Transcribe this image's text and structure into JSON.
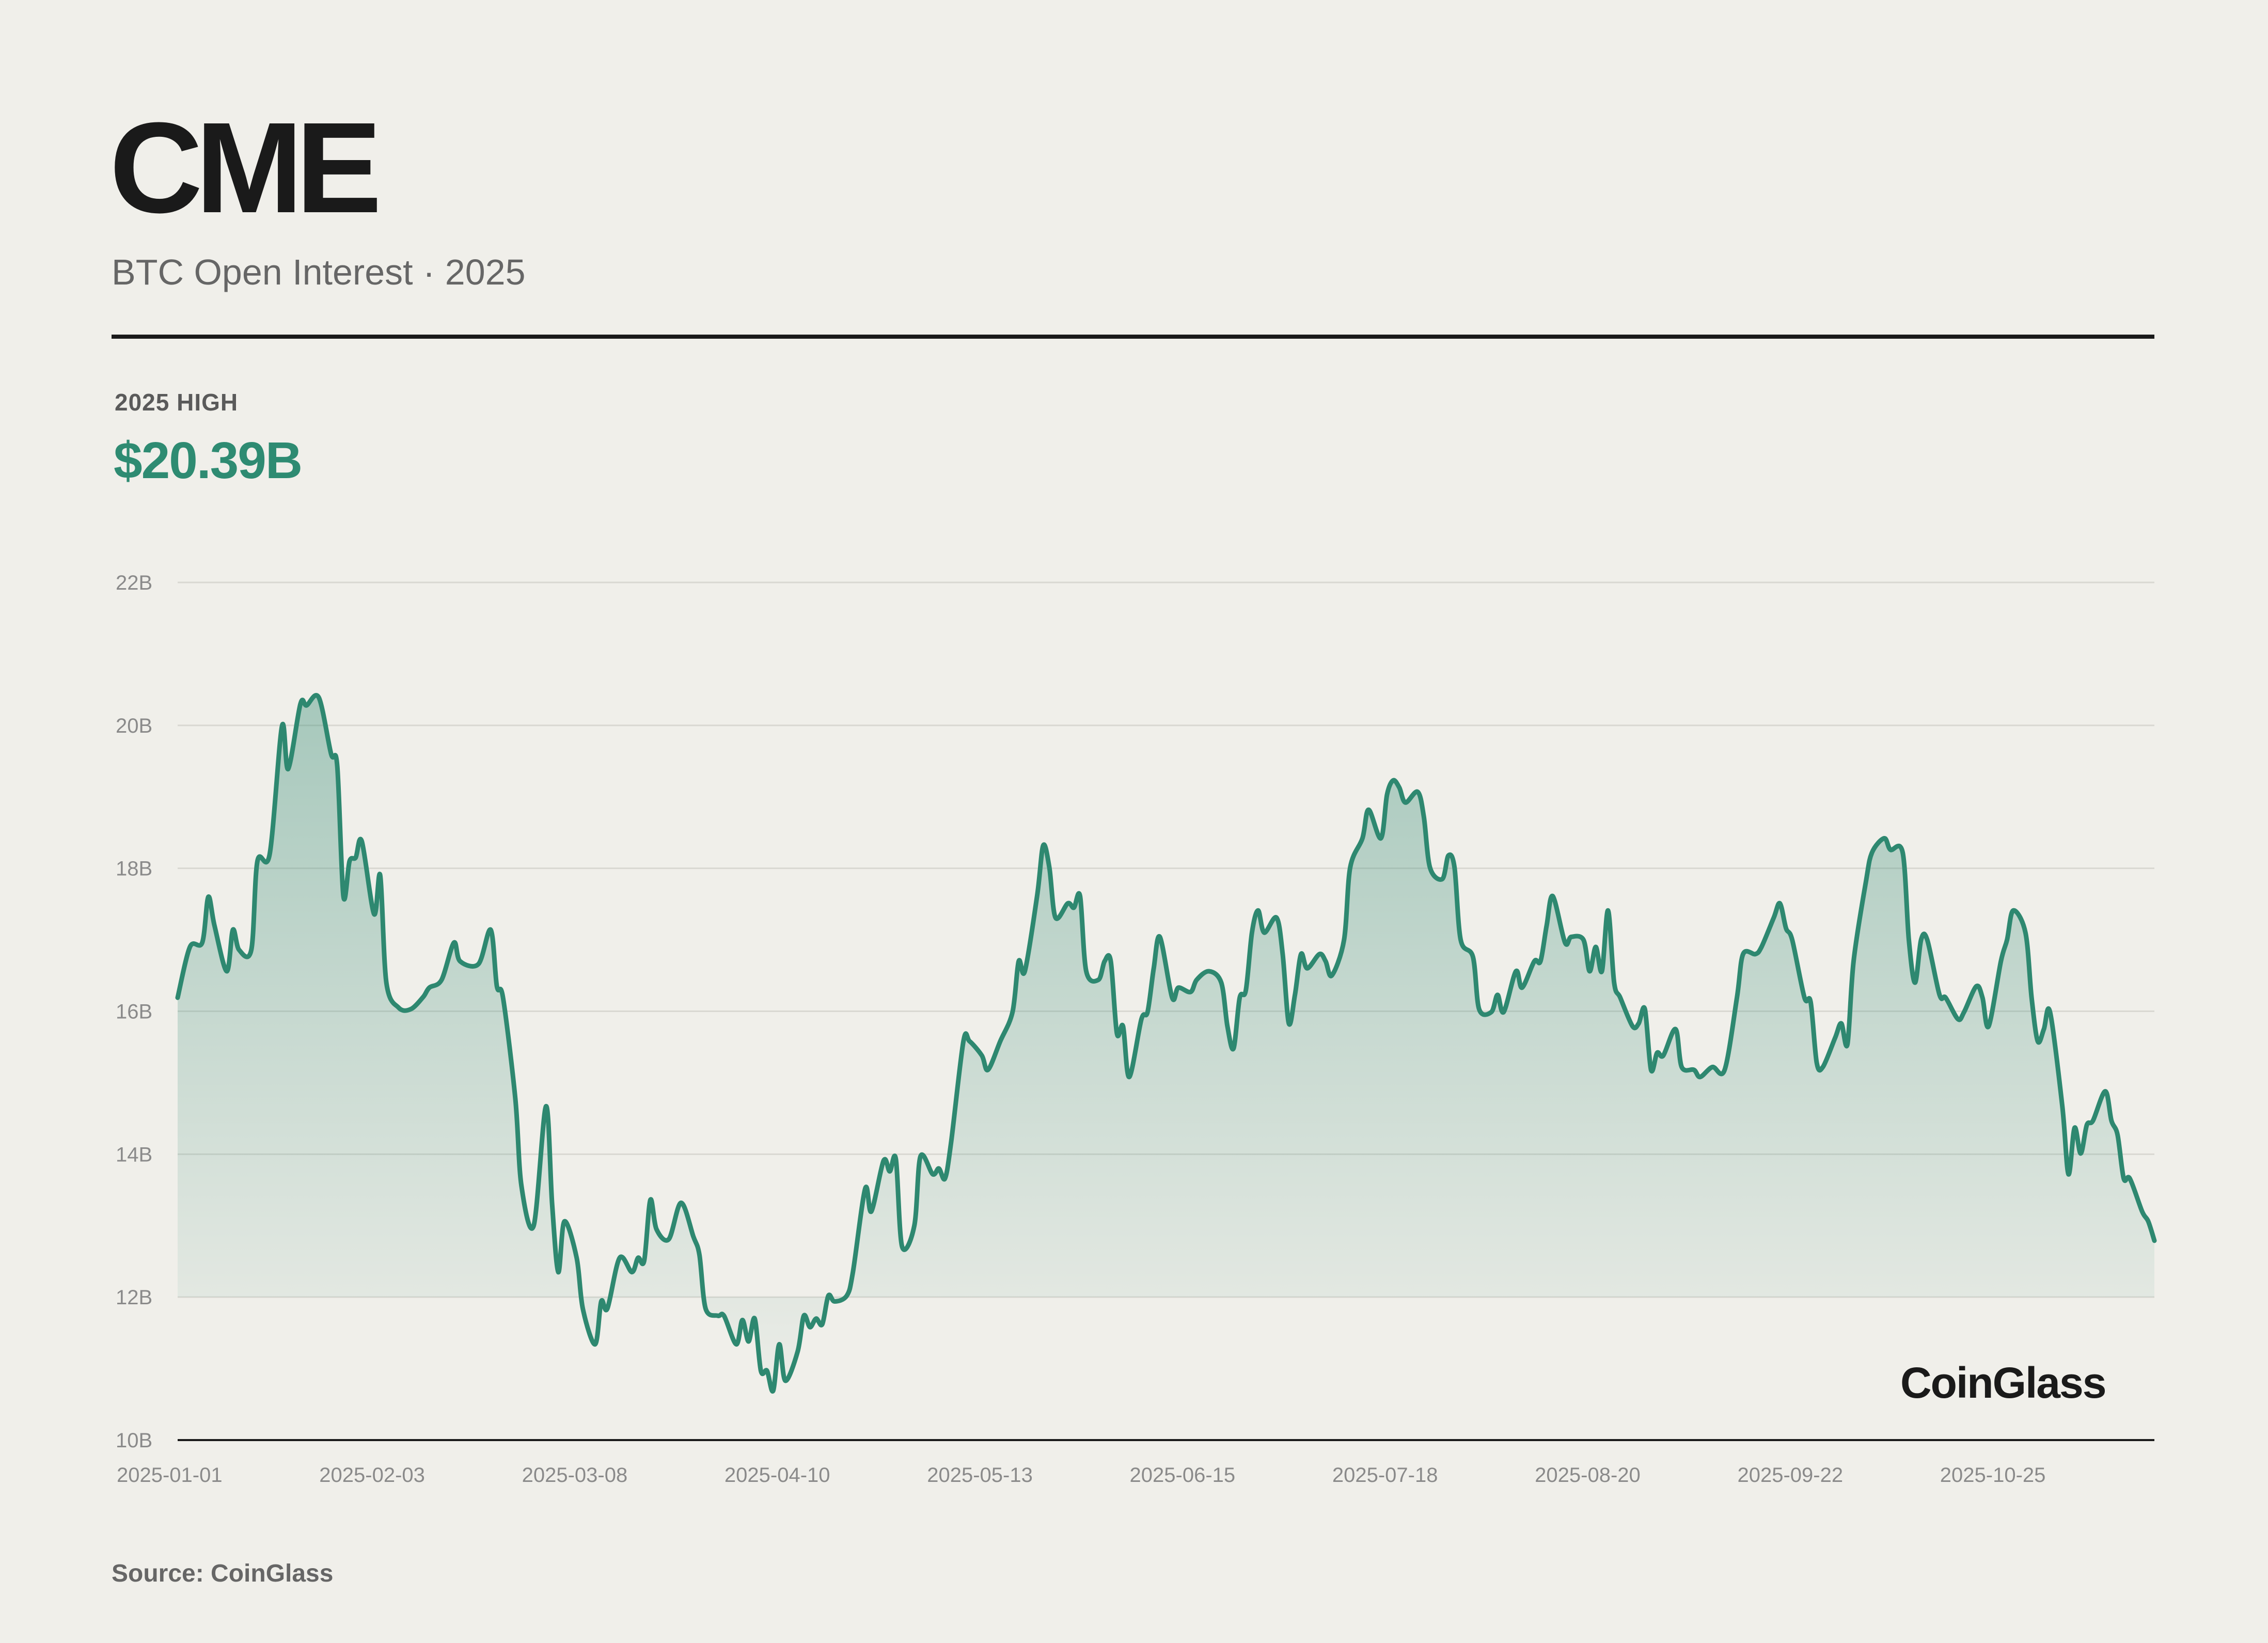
{
  "header": {
    "title": "CME",
    "subtitle": "BTC Open Interest · 2025"
  },
  "highlight": {
    "label": "2025 HIGH",
    "value": "$20.39B"
  },
  "footer": {
    "source": "Source: CoinGlass",
    "logo": "CoinGlass"
  },
  "colors": {
    "line": "#2e8870",
    "background": "#f0efea",
    "highlight": "#2e8b72"
  },
  "chart_data": {
    "type": "area",
    "ylim": [
      10,
      22
    ],
    "grid": true,
    "y_ticks": [
      "10B",
      "12B",
      "14B",
      "16B",
      "18B",
      "20B",
      "22B"
    ],
    "y_tick_values": [
      10,
      12,
      14,
      16,
      18,
      20,
      22
    ],
    "x_ticks": [
      "2025-01-01",
      "2025-02-03",
      "2025-03-08",
      "2025-04-10",
      "2025-05-13",
      "2025-06-15",
      "2025-07-18",
      "2025-08-20",
      "2025-09-22",
      "2025-10-25"
    ],
    "xlim": [
      "2025-01-01",
      "2025-11-19"
    ],
    "unit": "B USD",
    "points": [
      [
        "2025-01-01",
        16.19
      ],
      [
        "2025-01-03",
        16.9
      ],
      [
        "2025-01-05",
        16.96
      ],
      [
        "2025-01-06",
        17.6
      ],
      [
        "2025-01-07",
        17.2
      ],
      [
        "2025-01-09",
        16.56
      ],
      [
        "2025-01-10",
        17.14
      ],
      [
        "2025-01-11",
        16.86
      ],
      [
        "2025-01-13",
        16.86
      ],
      [
        "2025-01-14",
        18.1
      ],
      [
        "2025-01-16",
        18.2
      ],
      [
        "2025-01-18",
        19.99
      ],
      [
        "2025-01-19",
        19.39
      ],
      [
        "2025-01-21",
        20.3
      ],
      [
        "2025-01-22",
        20.28
      ],
      [
        "2025-01-24",
        20.39
      ],
      [
        "2025-01-26",
        19.6
      ],
      [
        "2025-01-27",
        19.43
      ],
      [
        "2025-01-28",
        17.61
      ],
      [
        "2025-01-29",
        18.1
      ],
      [
        "2025-01-30",
        18.15
      ],
      [
        "2025-01-31",
        18.38
      ],
      [
        "2025-02-02",
        17.36
      ],
      [
        "2025-02-03",
        17.9
      ],
      [
        "2025-02-04",
        16.4
      ],
      [
        "2025-02-06",
        16.05
      ],
      [
        "2025-02-08",
        16.03
      ],
      [
        "2025-02-10",
        16.2
      ],
      [
        "2025-02-11",
        16.33
      ],
      [
        "2025-02-13",
        16.44
      ],
      [
        "2025-02-15",
        16.96
      ],
      [
        "2025-02-16",
        16.7
      ],
      [
        "2025-02-19",
        16.66
      ],
      [
        "2025-02-21",
        17.14
      ],
      [
        "2025-02-22",
        16.35
      ],
      [
        "2025-02-23",
        16.19
      ],
      [
        "2025-02-25",
        14.78
      ],
      [
        "2025-02-26",
        13.56
      ],
      [
        "2025-02-28",
        13.0
      ],
      [
        "2025-03-02",
        14.67
      ],
      [
        "2025-03-03",
        13.3
      ],
      [
        "2025-03-04",
        12.35
      ],
      [
        "2025-03-05",
        13.06
      ],
      [
        "2025-03-07",
        12.55
      ],
      [
        "2025-03-08",
        11.84
      ],
      [
        "2025-03-10",
        11.34
      ],
      [
        "2025-03-11",
        11.94
      ],
      [
        "2025-03-12",
        11.84
      ],
      [
        "2025-03-14",
        12.55
      ],
      [
        "2025-03-16",
        12.35
      ],
      [
        "2025-03-17",
        12.55
      ],
      [
        "2025-03-18",
        12.51
      ],
      [
        "2025-03-19",
        13.36
      ],
      [
        "2025-03-20",
        12.95
      ],
      [
        "2025-03-22",
        12.81
      ],
      [
        "2025-03-24",
        13.32
      ],
      [
        "2025-03-26",
        12.85
      ],
      [
        "2025-03-27",
        12.59
      ],
      [
        "2025-03-28",
        11.84
      ],
      [
        "2025-03-30",
        11.74
      ],
      [
        "2025-03-31",
        11.74
      ],
      [
        "2025-04-02",
        11.34
      ],
      [
        "2025-04-03",
        11.68
      ],
      [
        "2025-04-04",
        11.38
      ],
      [
        "2025-04-05",
        11.7
      ],
      [
        "2025-04-06",
        10.97
      ],
      [
        "2025-04-07",
        10.97
      ],
      [
        "2025-04-08",
        10.69
      ],
      [
        "2025-04-09",
        11.34
      ],
      [
        "2025-04-10",
        10.83
      ],
      [
        "2025-04-12",
        11.24
      ],
      [
        "2025-04-13",
        11.74
      ],
      [
        "2025-04-14",
        11.58
      ],
      [
        "2025-04-15",
        11.7
      ],
      [
        "2025-04-16",
        11.62
      ],
      [
        "2025-04-17",
        12.02
      ],
      [
        "2025-04-18",
        11.94
      ],
      [
        "2025-04-20",
        12.02
      ],
      [
        "2025-04-21",
        12.35
      ],
      [
        "2025-04-23",
        13.52
      ],
      [
        "2025-04-24",
        13.2
      ],
      [
        "2025-04-26",
        13.91
      ],
      [
        "2025-04-27",
        13.76
      ],
      [
        "2025-04-28",
        13.93
      ],
      [
        "2025-04-29",
        12.71
      ],
      [
        "2025-05-01",
        13.0
      ],
      [
        "2025-05-02",
        13.97
      ],
      [
        "2025-05-04",
        13.72
      ],
      [
        "2025-05-05",
        13.8
      ],
      [
        "2025-05-06",
        13.66
      ],
      [
        "2025-05-07",
        14.17
      ],
      [
        "2025-05-09",
        15.58
      ],
      [
        "2025-05-10",
        15.58
      ],
      [
        "2025-05-12",
        15.38
      ],
      [
        "2025-05-13",
        15.18
      ],
      [
        "2025-05-15",
        15.58
      ],
      [
        "2025-05-17",
        15.99
      ],
      [
        "2025-05-18",
        16.7
      ],
      [
        "2025-05-19",
        16.56
      ],
      [
        "2025-05-21",
        17.61
      ],
      [
        "2025-05-22",
        18.32
      ],
      [
        "2025-05-23",
        18.01
      ],
      [
        "2025-05-24",
        17.31
      ],
      [
        "2025-05-26",
        17.51
      ],
      [
        "2025-05-27",
        17.45
      ],
      [
        "2025-05-28",
        17.61
      ],
      [
        "2025-05-29",
        16.56
      ],
      [
        "2025-05-31",
        16.44
      ],
      [
        "2025-06-01",
        16.7
      ],
      [
        "2025-06-02",
        16.7
      ],
      [
        "2025-06-03",
        15.69
      ],
      [
        "2025-06-04",
        15.79
      ],
      [
        "2025-06-05",
        15.08
      ],
      [
        "2025-06-07",
        15.89
      ],
      [
        "2025-06-08",
        15.99
      ],
      [
        "2025-06-09",
        16.6
      ],
      [
        "2025-06-10",
        17.04
      ],
      [
        "2025-06-12",
        16.19
      ],
      [
        "2025-06-13",
        16.33
      ],
      [
        "2025-06-15",
        16.27
      ],
      [
        "2025-06-16",
        16.44
      ],
      [
        "2025-06-18",
        16.56
      ],
      [
        "2025-06-20",
        16.4
      ],
      [
        "2025-06-21",
        15.79
      ],
      [
        "2025-06-22",
        15.48
      ],
      [
        "2025-06-23",
        16.19
      ],
      [
        "2025-06-24",
        16.29
      ],
      [
        "2025-06-25",
        17.1
      ],
      [
        "2025-06-26",
        17.41
      ],
      [
        "2025-06-27",
        17.1
      ],
      [
        "2025-06-29",
        17.31
      ],
      [
        "2025-06-30",
        16.8
      ],
      [
        "2025-07-01",
        15.83
      ],
      [
        "2025-07-02",
        16.23
      ],
      [
        "2025-07-03",
        16.8
      ],
      [
        "2025-07-04",
        16.6
      ],
      [
        "2025-07-06",
        16.8
      ],
      [
        "2025-07-07",
        16.7
      ],
      [
        "2025-07-08",
        16.5
      ],
      [
        "2025-07-10",
        17.0
      ],
      [
        "2025-07-11",
        18.01
      ],
      [
        "2025-07-13",
        18.42
      ],
      [
        "2025-07-14",
        18.82
      ],
      [
        "2025-07-16",
        18.42
      ],
      [
        "2025-07-17",
        19.03
      ],
      [
        "2025-07-18",
        19.23
      ],
      [
        "2025-07-19",
        19.13
      ],
      [
        "2025-07-20",
        18.92
      ],
      [
        "2025-07-22",
        19.07
      ],
      [
        "2025-07-23",
        18.72
      ],
      [
        "2025-07-24",
        18.01
      ],
      [
        "2025-07-26",
        17.85
      ],
      [
        "2025-07-27",
        18.18
      ],
      [
        "2025-07-28",
        18.01
      ],
      [
        "2025-07-29",
        17.0
      ],
      [
        "2025-07-31",
        16.76
      ],
      [
        "2025-08-01",
        16.03
      ],
      [
        "2025-08-03",
        15.99
      ],
      [
        "2025-08-04",
        16.23
      ],
      [
        "2025-08-05",
        15.99
      ],
      [
        "2025-08-07",
        16.56
      ],
      [
        "2025-08-08",
        16.33
      ],
      [
        "2025-08-10",
        16.7
      ],
      [
        "2025-08-11",
        16.7
      ],
      [
        "2025-08-12",
        17.2
      ],
      [
        "2025-08-13",
        17.61
      ],
      [
        "2025-08-15",
        16.96
      ],
      [
        "2025-08-16",
        17.04
      ],
      [
        "2025-08-18",
        17.0
      ],
      [
        "2025-08-19",
        16.56
      ],
      [
        "2025-08-20",
        16.9
      ],
      [
        "2025-08-21",
        16.56
      ],
      [
        "2025-08-22",
        17.41
      ],
      [
        "2025-08-23",
        16.4
      ],
      [
        "2025-08-24",
        16.19
      ],
      [
        "2025-08-26",
        15.79
      ],
      [
        "2025-08-27",
        15.83
      ],
      [
        "2025-08-28",
        16.03
      ],
      [
        "2025-08-29",
        15.18
      ],
      [
        "2025-08-30",
        15.42
      ],
      [
        "2025-08-31",
        15.38
      ],
      [
        "2025-09-02",
        15.75
      ],
      [
        "2025-09-03",
        15.22
      ],
      [
        "2025-09-05",
        15.18
      ],
      [
        "2025-09-06",
        15.08
      ],
      [
        "2025-09-08",
        15.22
      ],
      [
        "2025-09-10",
        15.18
      ],
      [
        "2025-09-12",
        16.19
      ],
      [
        "2025-09-13",
        16.8
      ],
      [
        "2025-09-15",
        16.8
      ],
      [
        "2025-09-16",
        16.9
      ],
      [
        "2025-09-18",
        17.31
      ],
      [
        "2025-09-19",
        17.51
      ],
      [
        "2025-09-20",
        17.16
      ],
      [
        "2025-09-21",
        17.0
      ],
      [
        "2025-09-23",
        16.19
      ],
      [
        "2025-09-24",
        16.13
      ],
      [
        "2025-09-25",
        15.28
      ],
      [
        "2025-09-26",
        15.22
      ],
      [
        "2025-09-28",
        15.63
      ],
      [
        "2025-09-29",
        15.83
      ],
      [
        "2025-09-30",
        15.54
      ],
      [
        "2025-10-01",
        16.7
      ],
      [
        "2025-10-03",
        17.81
      ],
      [
        "2025-10-04",
        18.22
      ],
      [
        "2025-10-06",
        18.42
      ],
      [
        "2025-10-07",
        18.26
      ],
      [
        "2025-10-09",
        18.22
      ],
      [
        "2025-10-10",
        17.0
      ],
      [
        "2025-10-11",
        16.4
      ],
      [
        "2025-10-12",
        17.0
      ],
      [
        "2025-10-13",
        17.0
      ],
      [
        "2025-10-15",
        16.23
      ],
      [
        "2025-10-16",
        16.19
      ],
      [
        "2025-10-18",
        15.89
      ],
      [
        "2025-10-19",
        15.99
      ],
      [
        "2025-10-21",
        16.35
      ],
      [
        "2025-10-22",
        16.19
      ],
      [
        "2025-10-23",
        15.79
      ],
      [
        "2025-10-25",
        16.7
      ],
      [
        "2025-10-26",
        17.0
      ],
      [
        "2025-10-27",
        17.41
      ],
      [
        "2025-10-29",
        17.1
      ],
      [
        "2025-10-30",
        16.19
      ],
      [
        "2025-10-31",
        15.58
      ],
      [
        "2025-11-01",
        15.75
      ],
      [
        "2025-11-02",
        15.99
      ],
      [
        "2025-11-04",
        14.67
      ],
      [
        "2025-11-05",
        13.72
      ],
      [
        "2025-11-06",
        14.37
      ],
      [
        "2025-11-07",
        14.01
      ],
      [
        "2025-11-08",
        14.41
      ],
      [
        "2025-11-09",
        14.47
      ],
      [
        "2025-11-11",
        14.88
      ],
      [
        "2025-11-12",
        14.47
      ],
      [
        "2025-11-13",
        14.27
      ],
      [
        "2025-11-14",
        13.66
      ],
      [
        "2025-11-15",
        13.66
      ],
      [
        "2025-11-17",
        13.2
      ],
      [
        "2025-11-18",
        13.06
      ],
      [
        "2025-11-19",
        12.79
      ]
    ]
  }
}
